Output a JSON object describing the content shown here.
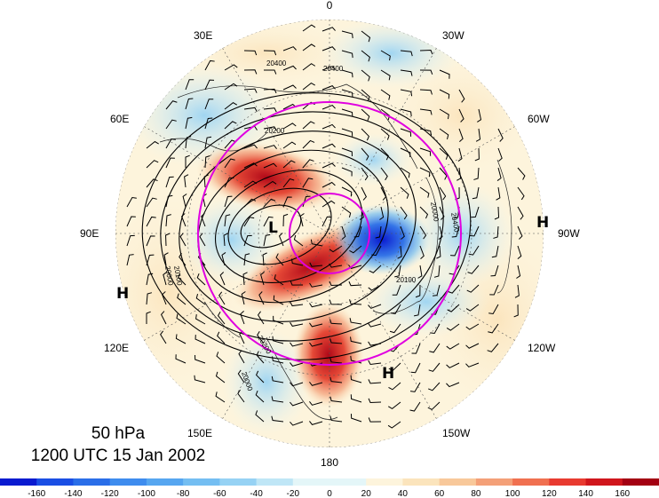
{
  "map": {
    "level_label": "50 hPa",
    "time_label": "1200 UTC 15 Jan 2002",
    "longitude_labels": {
      "top": "0",
      "top_left": "30E",
      "top_right": "30W",
      "upper_left": "60E",
      "upper_right": "60W",
      "left": "90E",
      "right": "90W",
      "lower_left": "120E",
      "lower_right": "120W",
      "bottom_left": "150E",
      "bottom_right": "150W",
      "bottom": "180"
    },
    "pressure_centers": [
      {
        "id": "low-center",
        "text": "L"
      },
      {
        "id": "high-center-west",
        "text": "H"
      },
      {
        "id": "high-center-east",
        "text": "H"
      },
      {
        "id": "high-center-south",
        "text": "H"
      }
    ],
    "contour_labels": [
      "20400",
      "20400",
      "20200",
      "20000",
      "20100",
      "20100",
      "20000",
      "20400",
      "20000",
      "20200"
    ],
    "colors": {
      "ring": "#e000e0",
      "contour": "#000000",
      "positive_max": "#a30012",
      "negative_max": "#0a1ad0"
    }
  },
  "colorbar": {
    "tick_labels": [
      "-160",
      "-140",
      "-120",
      "-100",
      "-80",
      "-60",
      "-40",
      "-20",
      "0",
      "20",
      "40",
      "60",
      "80",
      "100",
      "120",
      "140",
      "160"
    ],
    "colors": [
      "#0a1ad0",
      "#1a4ee4",
      "#2a6ee8",
      "#3e8cee",
      "#56a6f0",
      "#74bef2",
      "#96d2f4",
      "#bfe6f6",
      "#e4f6f8",
      "#fdf4dc",
      "#fbe4bc",
      "#f8c89a",
      "#f4a078",
      "#f07050",
      "#e83a30",
      "#d0161c",
      "#a30012"
    ]
  }
}
